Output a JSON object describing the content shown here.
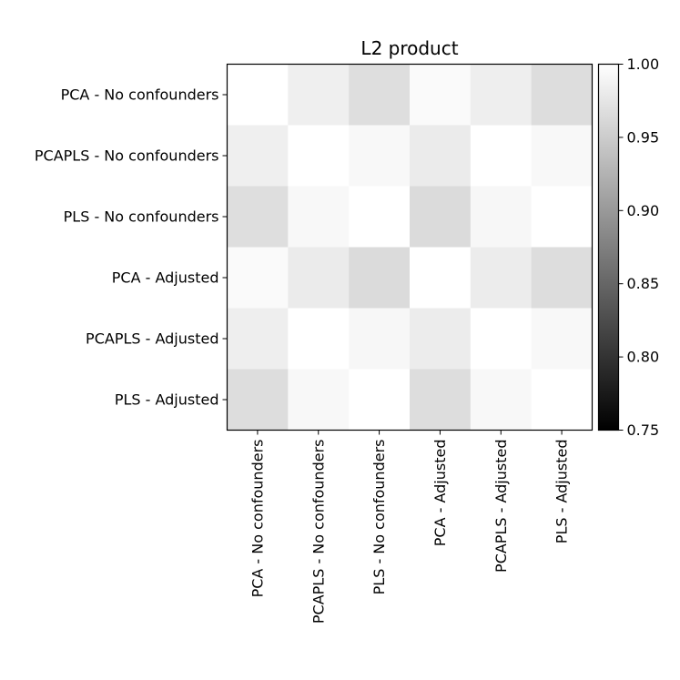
{
  "chart_data": {
    "type": "heatmap",
    "title": "L2 product",
    "xlabel": "",
    "ylabel": "",
    "row_labels": [
      "PCA - No confounders",
      "PCAPLS - No confounders",
      "PLS - No confounders",
      "PCA - Adjusted",
      "PCAPLS - Adjusted",
      "PLS - Adjusted"
    ],
    "col_labels": [
      "PCA - No confounders",
      "PCAPLS - No confounders",
      "PLS - No confounders",
      "PCA - Adjusted",
      "PCAPLS - Adjusted",
      "PLS - Adjusted"
    ],
    "values": [
      [
        1.0,
        0.984,
        0.968,
        0.995,
        0.983,
        0.967
      ],
      [
        0.984,
        1.0,
        0.993,
        0.98,
        1.0,
        0.993
      ],
      [
        0.968,
        0.993,
        1.0,
        0.965,
        0.992,
        1.0
      ],
      [
        0.995,
        0.98,
        0.965,
        1.0,
        0.981,
        0.967
      ],
      [
        0.983,
        1.0,
        0.992,
        0.981,
        1.0,
        0.993
      ],
      [
        0.967,
        0.993,
        1.0,
        0.967,
        0.993,
        1.0
      ]
    ],
    "colorscale": "grayscale",
    "colorbar": {
      "min": 0.75,
      "max": 1.0,
      "ticks": [
        "0.75",
        "0.80",
        "0.85",
        "0.90",
        "0.95",
        "1.00"
      ]
    }
  }
}
